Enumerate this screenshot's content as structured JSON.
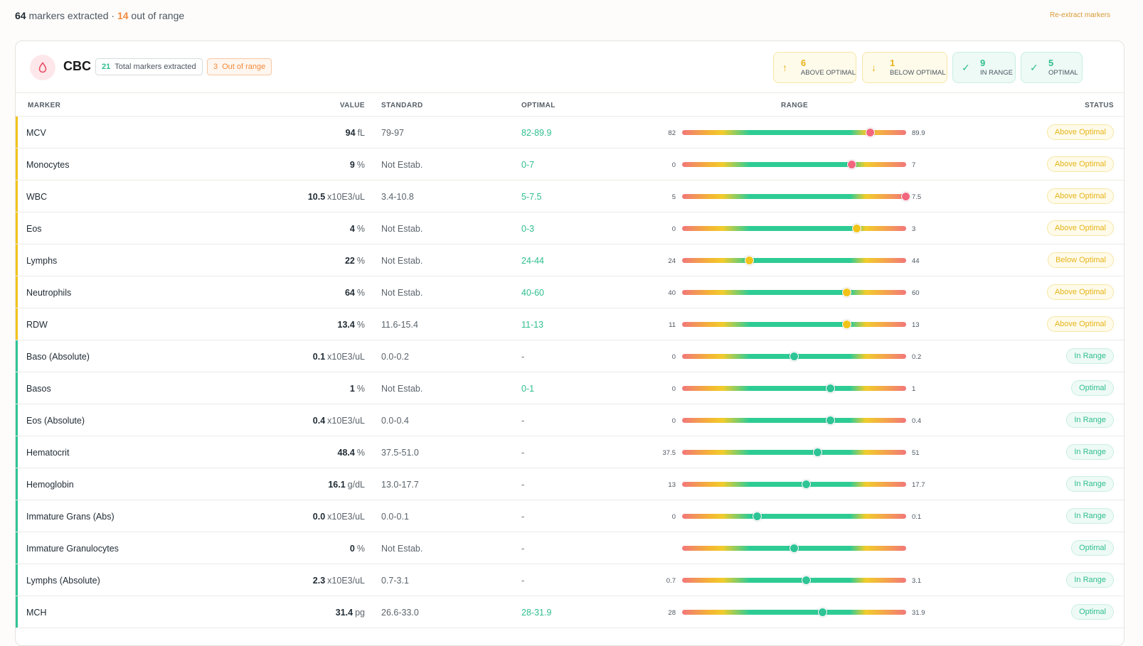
{
  "summary": {
    "markers_count": "64",
    "markers_text": " markers extracted · ",
    "out_count": "14",
    "out_text": " out of range",
    "reextract_label": "Re-extract markers"
  },
  "panel": {
    "title": "CBC",
    "icon": "blood-drop-icon",
    "total_count": "21",
    "total_label": "Total markers extracted",
    "out_count": "3",
    "out_label": "Out of range",
    "stats": [
      {
        "icon": "arrow-up-icon",
        "count": "6",
        "label": "ABOVE OPTIMAL"
      },
      {
        "icon": "arrow-down-icon",
        "count": "1",
        "label": "BELOW OPTIMAL"
      },
      {
        "icon": "check-icon",
        "count": "9",
        "label": "IN RANGE"
      },
      {
        "icon": "check-icon",
        "count": "5",
        "label": "OPTIMAL"
      }
    ]
  },
  "columns": {
    "marker": "MARKER",
    "value": "VALUE",
    "standard": "STANDARD",
    "optimal": "OPTIMAL",
    "range": "RANGE",
    "status": "STATUS"
  },
  "colors": {
    "warning": "#f2c319",
    "good": "#2fc496",
    "danger": "#f2667e",
    "orange": "#f08b3e"
  },
  "rows": [
    {
      "name": "MCV",
      "value": "94",
      "unit": "fL",
      "standard": "79-97",
      "optimal": "82-89.9",
      "range_min": "82",
      "range_max": "89.9",
      "position": 0.84,
      "dot": "danger",
      "status": "Above Optimal",
      "kind": "warn"
    },
    {
      "name": "Monocytes",
      "value": "9",
      "unit": "%",
      "standard": "Not Estab.",
      "optimal": "0-7",
      "range_min": "0",
      "range_max": "7",
      "position": 0.76,
      "dot": "danger",
      "status": "Above Optimal",
      "kind": "warn"
    },
    {
      "name": "WBC",
      "value": "10.5",
      "unit": "x10E3/uL",
      "standard": "3.4-10.8",
      "optimal": "5-7.5",
      "range_min": "5",
      "range_max": "7.5",
      "position": 1.0,
      "dot": "danger",
      "status": "Above Optimal",
      "kind": "warn"
    },
    {
      "name": "Eos",
      "value": "4",
      "unit": "%",
      "standard": "Not Estab.",
      "optimal": "0-3",
      "range_min": "0",
      "range_max": "3",
      "position": 0.78,
      "dot": "warning",
      "status": "Above Optimal",
      "kind": "warn"
    },
    {
      "name": "Lymphs",
      "value": "22",
      "unit": "%",
      "standard": "Not Estab.",
      "optimal": "24-44",
      "range_min": "24",
      "range_max": "44",
      "position": 0.3,
      "dot": "warning",
      "status": "Below Optimal",
      "kind": "warn"
    },
    {
      "name": "Neutrophils",
      "value": "64",
      "unit": "%",
      "standard": "Not Estab.",
      "optimal": "40-60",
      "range_min": "40",
      "range_max": "60",
      "position": 0.735,
      "dot": "warning",
      "status": "Above Optimal",
      "kind": "warn"
    },
    {
      "name": "RDW",
      "value": "13.4",
      "unit": "%",
      "standard": "11.6-15.4",
      "optimal": "11-13",
      "range_min": "11",
      "range_max": "13",
      "position": 0.735,
      "dot": "warning",
      "status": "Above Optimal",
      "kind": "warn"
    },
    {
      "name": "Baso (Absolute)",
      "value": "0.1",
      "unit": "x10E3/uL",
      "standard": "0.0-0.2",
      "optimal": "-",
      "range_min": "0",
      "range_max": "0.2",
      "position": 0.5,
      "dot": "good",
      "status": "In Range",
      "kind": "good"
    },
    {
      "name": "Basos",
      "value": "1",
      "unit": "%",
      "standard": "Not Estab.",
      "optimal": "0-1",
      "range_min": "0",
      "range_max": "1",
      "position": 0.665,
      "dot": "good",
      "status": "Optimal",
      "kind": "good"
    },
    {
      "name": "Eos (Absolute)",
      "value": "0.4",
      "unit": "x10E3/uL",
      "standard": "0.0-0.4",
      "optimal": "-",
      "range_min": "0",
      "range_max": "0.4",
      "position": 0.665,
      "dot": "good",
      "status": "In Range",
      "kind": "good"
    },
    {
      "name": "Hematocrit",
      "value": "48.4",
      "unit": "%",
      "standard": "37.5-51.0",
      "optimal": "-",
      "range_min": "37.5",
      "range_max": "51",
      "position": 0.605,
      "dot": "good",
      "status": "In Range",
      "kind": "good"
    },
    {
      "name": "Hemoglobin",
      "value": "16.1",
      "unit": "g/dL",
      "standard": "13.0-17.7",
      "optimal": "-",
      "range_min": "13",
      "range_max": "17.7",
      "position": 0.555,
      "dot": "good",
      "status": "In Range",
      "kind": "good"
    },
    {
      "name": "Immature Grans (Abs)",
      "value": "0.0",
      "unit": "x10E3/uL",
      "standard": "0.0-0.1",
      "optimal": "-",
      "range_min": "0",
      "range_max": "0.1",
      "position": 0.335,
      "dot": "good",
      "status": "In Range",
      "kind": "good"
    },
    {
      "name": "Immature Granulocytes",
      "value": "0",
      "unit": "%",
      "standard": "Not Estab.",
      "optimal": "-",
      "range_min": "",
      "range_max": "",
      "position": 0.5,
      "dot": "good",
      "status": "Optimal",
      "kind": "good"
    },
    {
      "name": "Lymphs (Absolute)",
      "value": "2.3",
      "unit": "x10E3/uL",
      "standard": "0.7-3.1",
      "optimal": "-",
      "range_min": "0.7",
      "range_max": "3.1",
      "position": 0.555,
      "dot": "good",
      "status": "In Range",
      "kind": "good"
    },
    {
      "name": "MCH",
      "value": "31.4",
      "unit": "pg",
      "standard": "26.6-33.0",
      "optimal": "28-31.9",
      "range_min": "28",
      "range_max": "31.9",
      "position": 0.63,
      "dot": "good",
      "status": "Optimal",
      "kind": "good"
    }
  ]
}
